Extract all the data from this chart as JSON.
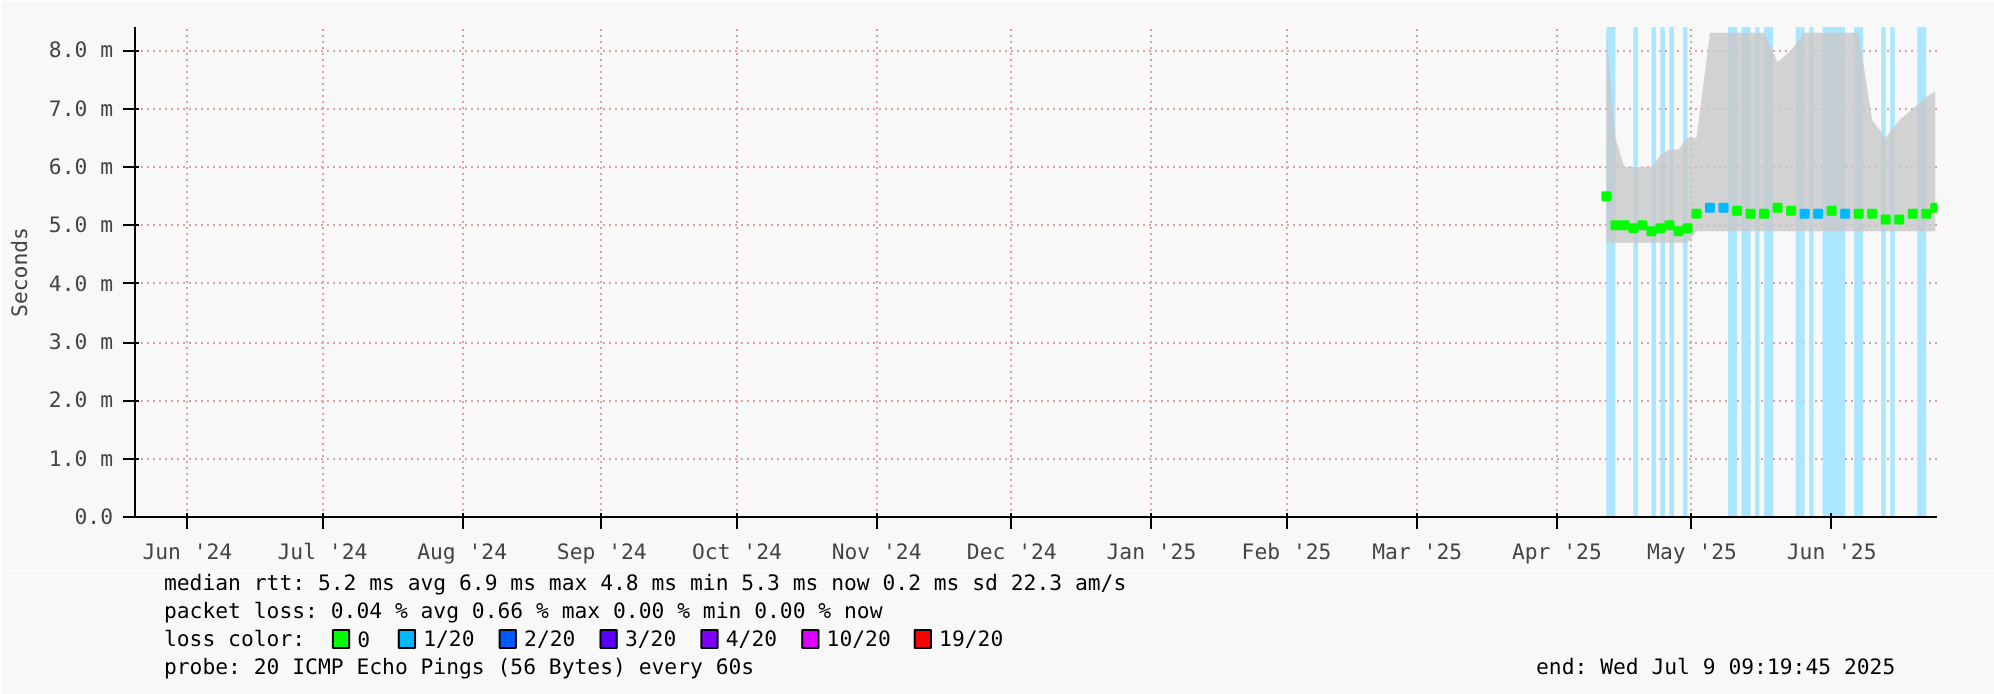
{
  "chart_data": {
    "type": "scatter",
    "ylabel": "Seconds",
    "legend_title": "loss color:",
    "annotations": [
      "median rtt:  5.2 ms avg  6.9 ms max  4.8 ms min  5.3 ms now  0.2 ms sd  22.3   am/s",
      "packet loss: 0.04 % avg  0.66 % max  0.00 % min  0.00 % now",
      "probe:       20 ICMP Echo Pings (56 Bytes) every 60s",
      "end: Wed Jul  9 09:19:45 2025"
    ],
    "xlim": [
      "2024-06-04T09:19",
      "2025-07-09T09:19"
    ],
    "xticks": [
      {
        "value": "2024-06-16",
        "label": "Jun '24"
      },
      {
        "value": "2024-07-16",
        "label": "Jul '24"
      },
      {
        "value": "2024-08-16",
        "label": "Aug '24"
      },
      {
        "value": "2024-09-16",
        "label": "Sep '24"
      },
      {
        "value": "2024-10-16",
        "label": "Oct '24"
      },
      {
        "value": "2024-11-16",
        "label": "Nov '24"
      },
      {
        "value": "2024-12-16",
        "label": "Dec '24"
      },
      {
        "value": "2025-01-16",
        "label": "Jan '25"
      },
      {
        "value": "2025-02-15",
        "label": "Feb '25"
      },
      {
        "value": "2025-03-16",
        "label": "Mar '25"
      },
      {
        "value": "2025-04-16",
        "label": "Apr '25"
      },
      {
        "value": "2025-05-16",
        "label": "May '25"
      },
      {
        "value": "2025-06-16",
        "label": "Jun '25"
      }
    ],
    "ylim": [
      0,
      8.4
    ],
    "yticks": [
      {
        "value": 0,
        "label": "0.0"
      },
      {
        "value": 1,
        "label": "1.0 m"
      },
      {
        "value": 2,
        "label": "2.0 m"
      },
      {
        "value": 3,
        "label": "3.0 m"
      },
      {
        "value": 4,
        "label": "4.0 m"
      },
      {
        "value": 5,
        "label": "5.0 m"
      },
      {
        "value": 6,
        "label": "6.0 m"
      },
      {
        "value": 7,
        "label": "7.0 m"
      },
      {
        "value": 8,
        "label": "8.0 m"
      }
    ],
    "grid": true,
    "legend": "bottom",
    "marker": "square",
    "bands": [
      {
        "axis": "x",
        "from": "2025-04-27",
        "to": "2025-04-29",
        "color": "#aae6ff"
      },
      {
        "axis": "x",
        "from": "2025-05-03",
        "to": "2025-05-04",
        "color": "#aae6ff"
      },
      {
        "axis": "x",
        "from": "2025-05-07",
        "to": "2025-05-08",
        "color": "#aae6ff"
      },
      {
        "axis": "x",
        "from": "2025-05-09",
        "to": "2025-05-10",
        "color": "#aae6ff"
      },
      {
        "axis": "x",
        "from": "2025-05-11",
        "to": "2025-05-12",
        "color": "#aae6ff"
      },
      {
        "axis": "x",
        "from": "2025-05-14",
        "to": "2025-05-15",
        "color": "#aae6ff"
      },
      {
        "axis": "x",
        "from": "2025-05-24",
        "to": "2025-05-26",
        "color": "#aae6ff"
      },
      {
        "axis": "x",
        "from": "2025-05-27",
        "to": "2025-05-29",
        "color": "#aae6ff"
      },
      {
        "axis": "x",
        "from": "2025-05-30",
        "to": "2025-05-31",
        "color": "#aae6ff"
      },
      {
        "axis": "x",
        "from": "2025-06-01",
        "to": "2025-06-03",
        "color": "#aae6ff"
      },
      {
        "axis": "x",
        "from": "2025-06-08",
        "to": "2025-06-09",
        "color": "#aae6ff"
      },
      {
        "axis": "x",
        "from": "2025-06-09",
        "to": "2025-06-10",
        "color": "#aae6ff"
      },
      {
        "axis": "x",
        "from": "2025-06-11",
        "to": "2025-06-12",
        "color": "#aae6ff"
      },
      {
        "axis": "x",
        "from": "2025-06-14",
        "to": "2025-06-19",
        "color": "#aae6ff"
      },
      {
        "axis": "x",
        "from": "2025-06-21",
        "to": "2025-06-23",
        "color": "#aae6ff"
      },
      {
        "axis": "x",
        "from": "2025-06-27",
        "to": "2025-06-28",
        "color": "#aae6ff"
      },
      {
        "axis": "x",
        "from": "2025-06-29",
        "to": "2025-06-30",
        "color": "#aae6ff"
      },
      {
        "axis": "x",
        "from": "2025-07-05",
        "to": "2025-07-07",
        "color": "#aae6ff"
      }
    ],
    "series": [
      {
        "name": "0",
        "color": "#00ff00",
        "x": [
          "2025-04-27",
          "2025-04-29",
          "2025-05-01",
          "2025-05-03",
          "2025-05-05",
          "2025-05-07",
          "2025-05-09",
          "2025-05-11",
          "2025-05-13",
          "2025-05-15",
          "2025-05-17",
          "2025-05-20",
          "2025-05-23",
          "2025-05-26",
          "2025-05-29",
          "2025-06-01",
          "2025-06-04",
          "2025-06-07",
          "2025-06-10",
          "2025-06-13",
          "2025-06-16",
          "2025-06-19",
          "2025-06-22",
          "2025-06-25",
          "2025-06-28",
          "2025-07-01",
          "2025-07-04",
          "2025-07-07",
          "2025-07-09"
        ],
        "values": [
          5.5,
          5.0,
          5.0,
          4.95,
          5.0,
          4.9,
          4.95,
          5.0,
          4.9,
          4.95,
          5.2,
          null,
          null,
          5.25,
          5.2,
          5.2,
          5.3,
          5.25,
          null,
          null,
          5.25,
          null,
          5.2,
          5.2,
          5.1,
          5.1,
          5.2,
          5.2,
          5.3
        ],
        "lower": [
          4.7,
          4.7,
          4.7,
          4.7,
          4.7,
          4.7,
          4.7,
          4.7,
          4.7,
          4.7,
          4.9,
          4.9,
          4.9,
          4.9,
          4.9,
          4.9,
          4.9,
          4.9,
          4.9,
          4.9,
          4.9,
          4.9,
          4.9,
          4.9,
          4.9,
          4.9,
          4.9,
          4.9,
          4.9
        ],
        "upper": [
          8.3,
          6.5,
          6.0,
          6.0,
          6.0,
          6.0,
          6.2,
          6.3,
          6.3,
          6.5,
          6.5,
          8.3,
          8.3,
          8.3,
          8.3,
          8.3,
          7.8,
          8.0,
          8.3,
          8.3,
          8.3,
          8.3,
          8.3,
          6.8,
          6.5,
          6.8,
          7.0,
          7.2,
          7.3
        ]
      },
      {
        "name": "1/20",
        "color": "#00b8ff",
        "x": [
          "2025-05-20",
          "2025-05-23",
          "2025-06-10",
          "2025-06-13",
          "2025-06-19"
        ],
        "values": [
          5.3,
          5.3,
          5.2,
          5.2,
          5.2
        ]
      },
      {
        "name": "2/20",
        "color": "#0059ff"
      },
      {
        "name": "3/20",
        "color": "#5e00ff"
      },
      {
        "name": "4/20",
        "color": "#7e00ff"
      },
      {
        "name": "10/20",
        "color": "#dd00ff"
      },
      {
        "name": "19/20",
        "color": "#ff0000"
      }
    ]
  }
}
